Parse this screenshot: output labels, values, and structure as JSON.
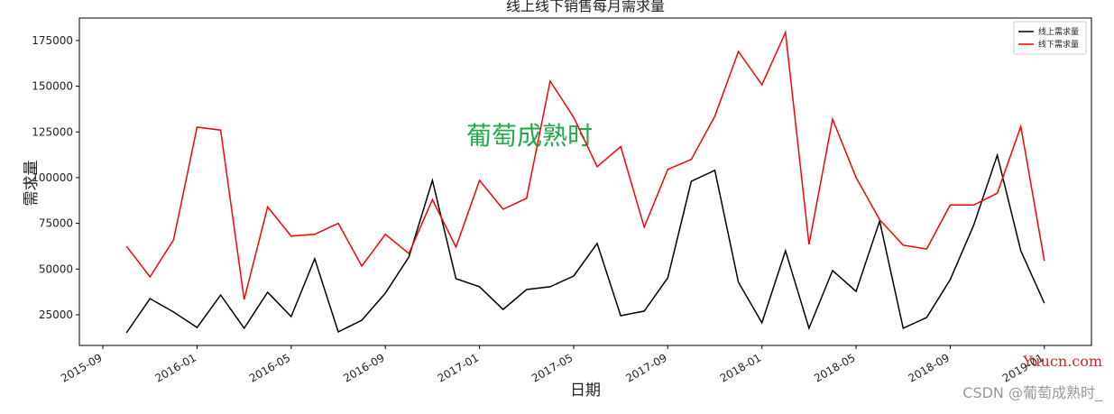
{
  "chart_data": {
    "type": "line",
    "title": "线上线下销售每月需求量",
    "x_label": "日期",
    "y_label": "需求量",
    "x": [
      "2015-10",
      "2015-11",
      "2015-12",
      "2016-01",
      "2016-02",
      "2016-03",
      "2016-04",
      "2016-05",
      "2016-06",
      "2016-07",
      "2016-08",
      "2016-09",
      "2016-10",
      "2016-11",
      "2016-12",
      "2017-01",
      "2017-02",
      "2017-03",
      "2017-04",
      "2017-05",
      "2017-06",
      "2017-07",
      "2017-08",
      "2017-09",
      "2017-10",
      "2017-11",
      "2017-12",
      "2018-01",
      "2018-02",
      "2018-03",
      "2018-04",
      "2018-05",
      "2018-06",
      "2018-07",
      "2018-08",
      "2018-09",
      "2018-10",
      "2018-11",
      "2018-12",
      "2019-01"
    ],
    "series": [
      {
        "name": "线上需求量",
        "color": "#000000",
        "values": [
          15100,
          33800,
          26500,
          18000,
          35800,
          17600,
          37300,
          24000,
          55600,
          15600,
          22000,
          36800,
          56600,
          98500,
          44700,
          40300,
          27900,
          38800,
          40300,
          46200,
          64000,
          24500,
          27000,
          45200,
          98000,
          104000,
          42800,
          20600,
          60000,
          17600,
          49200,
          37800,
          76300,
          17600,
          23500,
          44200,
          74000,
          112300,
          60000,
          31300
        ]
      },
      {
        "name": "线下需求量",
        "color": "#ff0000",
        "values": [
          62500,
          45700,
          66000,
          127600,
          126000,
          33300,
          84000,
          68000,
          69000,
          75000,
          51600,
          69000,
          58500,
          88000,
          62000,
          98500,
          82700,
          88700,
          152800,
          133000,
          106000,
          117000,
          72900,
          104500,
          110000,
          133600,
          169000,
          150800,
          179500,
          63500,
          132000,
          100000,
          77000,
          63000,
          61000,
          85000,
          85000,
          91500,
          128000,
          54500
        ]
      }
    ],
    "xlim": [
      "2015-08",
      "2019-03"
    ],
    "xticks": [
      "2015-09",
      "2016-01",
      "2016-05",
      "2016-09",
      "2017-01",
      "2017-05",
      "2017-09",
      "2018-01",
      "2018-05",
      "2018-09",
      "2019-01"
    ],
    "ylim": [
      8200,
      187300
    ],
    "yticks": [
      25000,
      50000,
      75000,
      100000,
      125000,
      150000,
      175000
    ],
    "legend": "upper right",
    "annotations": [
      "葡萄成熟时",
      "Yuucn.com",
      "CSDN @葡萄成熟时_"
    ]
  }
}
